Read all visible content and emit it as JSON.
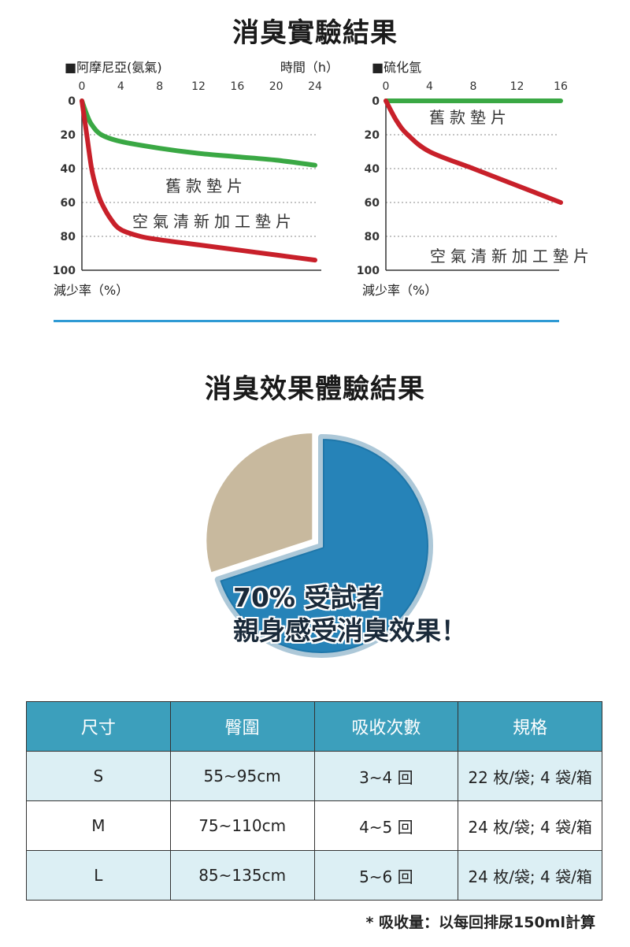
{
  "header": {
    "title": "消臭實驗結果"
  },
  "chart_data": [
    {
      "type": "line",
      "legend": "■阿摩尼亞(氨氣)",
      "xlabel": "時間（h）",
      "ylabel": "減少率（%）",
      "x_ticks": [
        "0",
        "4",
        "8",
        "12",
        "16",
        "20",
        "24"
      ],
      "y_ticks": [
        "0",
        "20",
        "40",
        "60",
        "80",
        "100"
      ],
      "xlim": [
        0,
        24
      ],
      "ylim": [
        0,
        100
      ],
      "y_inverted": true,
      "grid": true,
      "series": [
        {
          "name": "舊款墊片",
          "color": "#3aa844",
          "x": [
            0,
            0.5,
            1,
            2,
            4,
            8,
            12,
            16,
            20,
            24
          ],
          "y": [
            0,
            8,
            14,
            20,
            24,
            28,
            31,
            33,
            35,
            38
          ]
        },
        {
          "name": "空氣清新加工墊片",
          "color": "#c8202a",
          "x": [
            0,
            0.5,
            1,
            1.5,
            2,
            3,
            4,
            6,
            8,
            12,
            16,
            20,
            24
          ],
          "y": [
            0,
            20,
            40,
            52,
            60,
            70,
            76,
            80,
            82,
            85,
            88,
            91,
            94
          ]
        }
      ]
    },
    {
      "type": "line",
      "legend": "■硫化氫",
      "ylabel": "減少率（%）",
      "x_ticks": [
        "0",
        "4",
        "8",
        "12",
        "16"
      ],
      "y_ticks": [
        "0",
        "20",
        "40",
        "60",
        "80",
        "100"
      ],
      "xlim": [
        0,
        16
      ],
      "ylim": [
        0,
        100
      ],
      "y_inverted": true,
      "grid": true,
      "series": [
        {
          "name": "舊款墊片",
          "color": "#3aa844",
          "x": [
            0,
            4,
            8,
            12,
            16
          ],
          "y": [
            0,
            0,
            0,
            0,
            0
          ]
        },
        {
          "name": "空氣清新加工墊片",
          "color": "#c8202a",
          "x": [
            0,
            1,
            2,
            4,
            8,
            12,
            16
          ],
          "y": [
            0,
            12,
            20,
            30,
            40,
            50,
            60
          ]
        }
      ]
    },
    {
      "type": "pie",
      "slices": [
        {
          "label": "70% 受試者",
          "value": 70,
          "color": "#2683b8"
        },
        {
          "value": 30,
          "color": "#c8b99e"
        }
      ]
    }
  ],
  "section2": {
    "title": "消臭效果體驗結果",
    "pie_line1": "70% 受試者",
    "pie_line2": "親身感受消臭效果！"
  },
  "table": {
    "headers": [
      "尺寸",
      "臀圍",
      "吸收次數",
      "規格"
    ],
    "rows": [
      [
        "S",
        "55~95cm",
        "3~4 回",
        "22 枚/袋; 4 袋/箱"
      ],
      [
        "M",
        "75~110cm",
        "4~5 回",
        "24 枚/袋; 4 袋/箱"
      ],
      [
        "L",
        "85~135cm",
        "5~6 回",
        "24 枚/袋; 4 袋/箱"
      ]
    ]
  },
  "footnote": "* 吸收量：以每回排尿150ml計算"
}
